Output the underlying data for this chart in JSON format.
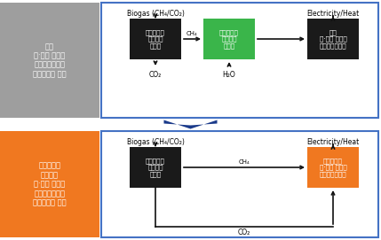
{
  "fig_width": 4.29,
  "fig_height": 2.71,
  "bg_color": "#ffffff",
  "outer_border_color": "#4472c4",
  "outer_border_lw": 1.5,
  "top_left_bg": "#9e9e9e",
  "bottom_left_bg": "#f07820",
  "top_left_lines": [
    "수소",
    "중·저온 세라믹",
    "연료전지시스템",
    "열병합발전 기술"
  ],
  "bottom_left_lines": [
    "바이오가스",
    "직접활용",
    "중·저온 세라믹",
    "연료전지시스템",
    "열병합발전 기술"
  ],
  "box1_top_label": [
    "바이오가스",
    "고도정제",
    "시스템"
  ],
  "box2_top_label": [
    "바이오메탄",
    "수소생산",
    "시스템"
  ],
  "box3_top_label": [
    "수소",
    "중·저온 세라믹",
    "연료전지시스템"
  ],
  "box1_bot_label": [
    "바이오가스",
    "고도정제",
    "시스템"
  ],
  "box2_bot_label": [
    "바이오가스",
    "중·저온 세라믹",
    "연료전지시스템"
  ],
  "box_color_dark": "#1a1a1a",
  "box_color_green": "#3ab54a",
  "box_color_orange": "#f07820",
  "top_biogas_label": "Biogas (CH₄/CO₂)",
  "top_elec_label": "Electricity/Heat",
  "bot_biogas_label": "Biogas (CH₄/CO₂)",
  "bot_elec_label": "Electricity/Heat",
  "arrow_color": "#111111",
  "chevron_color": "#1a3a8a",
  "top_co2": "CO₂",
  "top_h2o": "H₂O",
  "top_ch4": "CH₄",
  "bot_ch4": "CH₄",
  "bot_co2": "CO₂"
}
